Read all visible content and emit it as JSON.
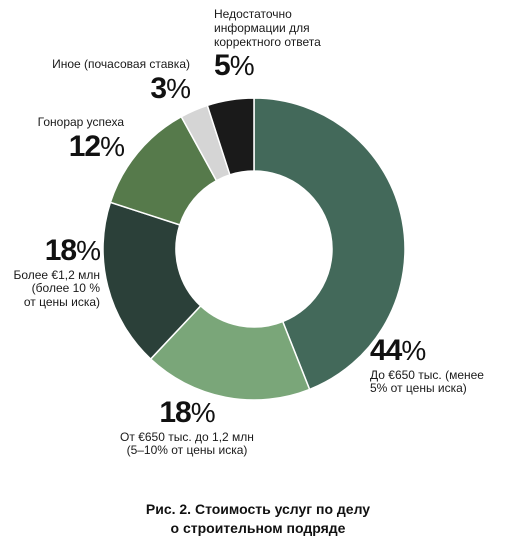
{
  "chart_data": {
    "type": "pie",
    "title": "Рис. 2. Стоимость услуг по делу о строительном подряде",
    "donut": true,
    "slices": [
      {
        "label": "До €650 тыс. (менее 5% от цены иска)",
        "value": 44,
        "pct_text": "44",
        "color": "#43695a"
      },
      {
        "label": "От €650 тыс. до 1,2 млн (5–10% от цены иска)",
        "value": 18,
        "pct_text": "18",
        "color": "#7aa679"
      },
      {
        "label": "Более €1,2 млн (более 10 % от цены иска)",
        "value": 18,
        "pct_text": "18",
        "color": "#2b4039"
      },
      {
        "label": "Гонорар успеха",
        "value": 12,
        "pct_text": "12",
        "color": "#567a4b"
      },
      {
        "label": "Иное (почасовая ставка)",
        "value": 3,
        "pct_text": "3",
        "color": "#d5d5d5"
      },
      {
        "label": "Недостаточно информации для корректного ответа",
        "value": 5,
        "pct_text": "5",
        "color": "#1a1a1a"
      }
    ],
    "unit": "%"
  },
  "caption": {
    "line1": "Рис. 2. Стоимость услуг по делу",
    "line2": "о строительном подряде"
  },
  "labels": {
    "s0": {
      "pct": "44",
      "l1": "До €650 тыс. (менее",
      "l2": "5% от цены иска)"
    },
    "s1": {
      "pct": "18",
      "l1": "От €650 тыс. до 1,2 млн",
      "l2": "(5–10% от цены иска)"
    },
    "s2": {
      "pct": "18",
      "l1": "Более €1,2 млн",
      "l2": "(более 10 %",
      "l3": "от цены иска)"
    },
    "s3": {
      "pct": "12",
      "l1": "Гонорар успеха"
    },
    "s4": {
      "pct": "3",
      "l1": "Иное (почасовая ставка)"
    },
    "s5": {
      "pct": "5",
      "l1": "Недостаточно",
      "l2": "информации для",
      "l3": "корректного ответа"
    },
    "unit": "%"
  }
}
